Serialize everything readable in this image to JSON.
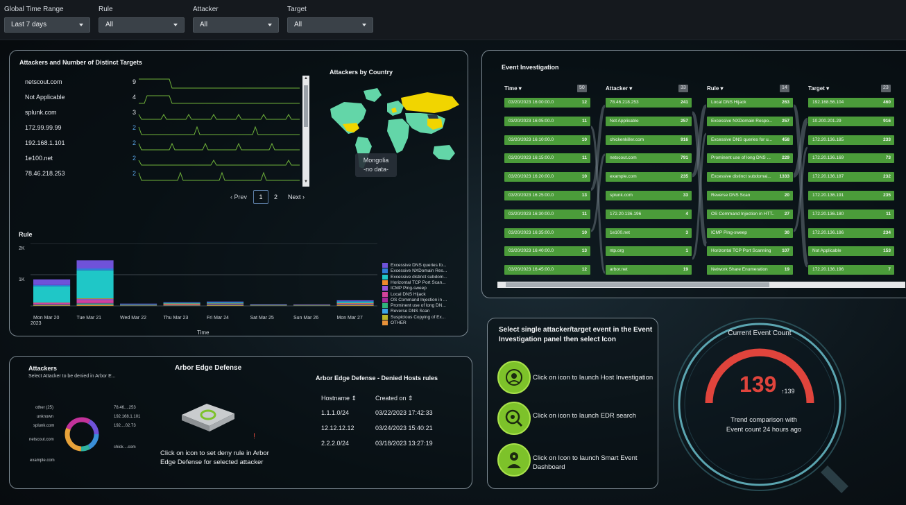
{
  "filters": [
    {
      "label": "Global Time Range",
      "value": "Last 7 days"
    },
    {
      "label": "Rule",
      "value": "All"
    },
    {
      "label": "Attacker",
      "value": "All"
    },
    {
      "label": "Target",
      "value": "All"
    }
  ],
  "attackers_panel": {
    "title": "Attackers and Number of Distinct Targets",
    "rows": [
      {
        "name": "netscout.com",
        "count": "9"
      },
      {
        "name": "Not Applicable",
        "count": "4"
      },
      {
        "name": "splunk.com",
        "count": "3"
      },
      {
        "name": "172.99.99.99",
        "count": "2"
      },
      {
        "name": "192.168.1.101",
        "count": "2"
      },
      {
        "name": "1e100.net",
        "count": "2"
      },
      {
        "name": "78.46.218.253",
        "count": "2"
      }
    ],
    "pager": {
      "prev": "‹ Prev",
      "page1": "1",
      "page2": "2",
      "next": "Next ›"
    }
  },
  "country_map": {
    "title": "Attackers by Country",
    "tooltip_line1": "Mongolia",
    "tooltip_line2": "-no data-"
  },
  "rule_chart": {
    "title": "Rule",
    "xlabel": "Time",
    "ytick_2k": "2K",
    "ytick_1k": "1K",
    "year_label": "2023"
  },
  "chart_data": {
    "type": "bar",
    "title": "Rule",
    "xlabel": "Time",
    "ylabel": "",
    "ylim": [
      0,
      2000
    ],
    "categories": [
      "Mon Mar 20",
      "Tue Mar 21",
      "Wed Mar 22",
      "Thu Mar 23",
      "Fri Mar 24",
      "Sat Mar 25",
      "Sun Mar 26",
      "Mon Mar 27"
    ],
    "series": [
      {
        "name": "Excessive DNS queries fo...",
        "color": "#6f52d9",
        "values": [
          180,
          260,
          5,
          10,
          15,
          5,
          5,
          25
        ]
      },
      {
        "name": "Excessive NXDomain Res...",
        "color": "#2f7dd8",
        "values": [
          40,
          60,
          20,
          15,
          20,
          5,
          5,
          20
        ]
      },
      {
        "name": "Excessive distinct subdom...",
        "color": "#1fc7c7",
        "values": [
          520,
          900,
          10,
          20,
          25,
          10,
          5,
          40
        ]
      },
      {
        "name": "Horizontal TCP Port Scan...",
        "color": "#f08a2a",
        "values": [
          10,
          20,
          5,
          30,
          10,
          5,
          5,
          20
        ]
      },
      {
        "name": "ICMP Ping-sweep",
        "color": "#9a55d8",
        "values": [
          10,
          40,
          5,
          10,
          10,
          5,
          5,
          10
        ]
      },
      {
        "name": "Local DNS Hijack",
        "color": "#d2439a",
        "values": [
          40,
          80,
          5,
          10,
          10,
          5,
          5,
          10
        ]
      },
      {
        "name": "OS Command Injection in ...",
        "color": "#a62a9a",
        "values": [
          10,
          20,
          5,
          5,
          10,
          5,
          5,
          10
        ]
      },
      {
        "name": "Prominent use of long DN...",
        "color": "#2fb27a",
        "values": [
          10,
          20,
          5,
          5,
          10,
          5,
          5,
          10
        ]
      },
      {
        "name": "Reverse DNS Scan",
        "color": "#3ba4e6",
        "values": [
          10,
          20,
          5,
          5,
          10,
          5,
          5,
          10
        ]
      },
      {
        "name": "Suspicious Copying of Ex...",
        "color": "#b9b52a",
        "values": [
          10,
          20,
          5,
          5,
          10,
          5,
          5,
          10
        ]
      },
      {
        "name": "OTHER",
        "color": "#e8923a",
        "values": [
          10,
          20,
          5,
          5,
          10,
          5,
          5,
          15
        ]
      }
    ]
  },
  "event_investigation": {
    "title": "Event Investigation",
    "columns": [
      {
        "head": "Time ▾",
        "badge": "50",
        "cells": [
          {
            "t": "03/20/2023 16:00:00.0",
            "v": "12"
          },
          {
            "t": "03/20/2023 16:05:00.0",
            "v": "11"
          },
          {
            "t": "03/20/2023 16:10:00.0",
            "v": "10"
          },
          {
            "t": "03/20/2023 16:15:00.0",
            "v": "11"
          },
          {
            "t": "03/20/2023 16:20:00.0",
            "v": "10"
          },
          {
            "t": "03/20/2023 16:25:00.0",
            "v": "13"
          },
          {
            "t": "03/20/2023 16:30:00.0",
            "v": "11"
          },
          {
            "t": "03/20/2023 16:35:00.0",
            "v": "10"
          },
          {
            "t": "03/20/2023 16:40:00.0",
            "v": "13"
          },
          {
            "t": "03/20/2023 16:45:00.0",
            "v": "12"
          }
        ]
      },
      {
        "head": "Attacker ▾",
        "badge": "33",
        "cells": [
          {
            "t": "78.46.218.253",
            "v": "241"
          },
          {
            "t": "Not Applicable",
            "v": "257"
          },
          {
            "t": "chickenkiller.com",
            "v": "916"
          },
          {
            "t": "netscout.com",
            "v": "791"
          },
          {
            "t": "example.com",
            "v": "235"
          },
          {
            "t": "splunk.com",
            "v": "33"
          },
          {
            "t": "172.20.136.196",
            "v": "4"
          },
          {
            "t": "1e100.net",
            "v": "3"
          },
          {
            "t": "ntp.org",
            "v": "1"
          },
          {
            "t": "arbor.net",
            "v": "19"
          }
        ]
      },
      {
        "head": "Rule ▾",
        "badge": "14",
        "cells": [
          {
            "t": "Local DNS Hijack",
            "v": "263"
          },
          {
            "t": "Excessive NXDomain Respo...",
            "v": "257"
          },
          {
            "t": "Excessive DNS queries for u...",
            "v": "458"
          },
          {
            "t": "Prominent use of long DNS ...",
            "v": "229"
          },
          {
            "t": "Excessive distinct subdomai...",
            "v": "1333"
          },
          {
            "t": "Reverse DNS Scan",
            "v": "20"
          },
          {
            "t": "OS Command Injection in HTT...",
            "v": "27"
          },
          {
            "t": "ICMP Ping-sweep",
            "v": "30"
          },
          {
            "t": "Horizontal TCP Port Scanning",
            "v": "107"
          },
          {
            "t": "Network Share Enumeration",
            "v": "19"
          }
        ]
      },
      {
        "head": "Target ▾",
        "badge": "23",
        "cells": [
          {
            "t": "192.168.56.104",
            "v": "460"
          },
          {
            "t": "10.200.201.29",
            "v": "916"
          },
          {
            "t": "172.20.136.185",
            "v": "233"
          },
          {
            "t": "172.20.136.169",
            "v": "73"
          },
          {
            "t": "172.20.136.187",
            "v": "232"
          },
          {
            "t": "172.20.136.191",
            "v": "235"
          },
          {
            "t": "172.20.136.180",
            "v": "11"
          },
          {
            "t": "172.20.136.186",
            "v": "234"
          },
          {
            "t": "Not Applicable",
            "v": "153"
          },
          {
            "t": "172.20.136.196",
            "v": "7"
          }
        ]
      }
    ]
  },
  "arbor_panel": {
    "attackers_title": "Attackers",
    "attackers_sub": "Select Attacker to be denied in Arbor E...",
    "donut_labels": [
      {
        "t": "other (25)"
      },
      {
        "t": "unknown"
      },
      {
        "t": "splunk.com"
      },
      {
        "t": "netscout.com"
      },
      {
        "t": "example.com"
      },
      {
        "t": "78.46....253"
      },
      {
        "t": "192.168.1.101"
      },
      {
        "t": "192....02.73"
      },
      {
        "t": "chick....com"
      }
    ],
    "aed_title": "Arbor Edge Defense",
    "aed_desc": "Click on icon to set deny rule in Arbor Edge Defense for selected attacker",
    "hosts_title": "Arbor Edge Defense - Denied Hosts rules",
    "col_host": "Hostname",
    "col_created": "Created on",
    "rows": [
      {
        "host": "1.1.1.0/24",
        "created": "03/22/2023 17:42:33"
      },
      {
        "host": "12.12.12.12",
        "created": "03/24/2023 15:40:21"
      },
      {
        "host": "2.2.2.0/24",
        "created": "03/18/2023 13:27:19"
      }
    ]
  },
  "actions_panel": {
    "title": "Select single attacker/target event in the Event Investigation panel then select Icon",
    "items": [
      {
        "icon": "host-investigation-icon",
        "label": "Click on icon to launch Host Investigation"
      },
      {
        "icon": "edr-search-icon",
        "label": "Click on icon to launch EDR search"
      },
      {
        "icon": "smart-event-icon",
        "label": "Click on Icon to launch Smart Event Dashboard"
      }
    ]
  },
  "gauge": {
    "title": "Current Event Count",
    "value": "139",
    "trend": "↑139",
    "caption": "Trend comparison with Event count 24 hours ago",
    "accent": "#e0443c"
  }
}
